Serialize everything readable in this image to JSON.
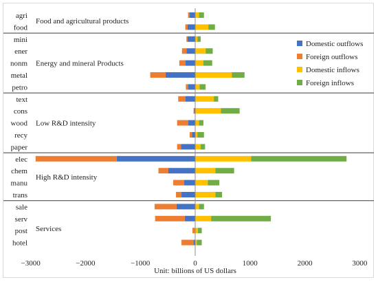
{
  "chart_data": {
    "type": "bar",
    "orientation": "horizontal",
    "stacked": "diverging",
    "categories": [
      "agri",
      "food",
      "mini",
      "ener",
      "nonm",
      "metal",
      "petro",
      "text",
      "cons",
      "wood",
      "recy",
      "paper",
      "elec",
      "chem",
      "manu",
      "trans",
      "sale",
      "serv",
      "post",
      "hotel"
    ],
    "groups": [
      {
        "label": "Food and agricultural products",
        "categories": [
          "agri",
          "food"
        ]
      },
      {
        "label": "Energy and mineral Products",
        "categories": [
          "mini",
          "ener",
          "nonm",
          "metal",
          "petro"
        ]
      },
      {
        "label": "Low R&D intensity",
        "categories": [
          "text",
          "cons",
          "wood",
          "recy",
          "paper"
        ]
      },
      {
        "label": "High R&D intensity",
        "categories": [
          "elec",
          "chem",
          "manu",
          "trans"
        ]
      },
      {
        "label": "Services",
        "categories": [
          "sale",
          "serv",
          "post",
          "hotel"
        ]
      }
    ],
    "series": [
      {
        "name": "Domestic outflows",
        "color": "#4472c4",
        "values": [
          -100,
          -140,
          -140,
          -160,
          -180,
          -540,
          -130,
          -180,
          -20,
          -130,
          -60,
          -260,
          -1430,
          -490,
          -200,
          -250,
          -340,
          -190,
          -10,
          -30
        ]
      },
      {
        "name": "Foreign outflows",
        "color": "#ed7d31",
        "values": [
          -30,
          -40,
          -20,
          -80,
          -110,
          -280,
          -40,
          -130,
          -10,
          -200,
          -40,
          -70,
          -1480,
          -180,
          -200,
          -100,
          -400,
          -540,
          -40,
          -220
        ]
      },
      {
        "name": "Domestic inflows",
        "color": "#ffc000",
        "values": [
          70,
          240,
          40,
          190,
          150,
          670,
          80,
          340,
          470,
          70,
          40,
          100,
          1020,
          370,
          230,
          370,
          70,
          290,
          50,
          30
        ]
      },
      {
        "name": "Foreign inflows",
        "color": "#70ad47",
        "values": [
          90,
          120,
          60,
          130,
          160,
          230,
          110,
          80,
          340,
          80,
          120,
          80,
          1740,
          340,
          210,
          120,
          90,
          1090,
          70,
          90
        ]
      }
    ],
    "x_ticks": [
      "−3000",
      "−2000",
      "−1000",
      "0",
      "1000",
      "2000",
      "3000"
    ],
    "xlim": [
      -3000,
      3000
    ],
    "xlabel": "Unit: billions of US dollars",
    "legend_position": "top-right",
    "grid": false
  }
}
